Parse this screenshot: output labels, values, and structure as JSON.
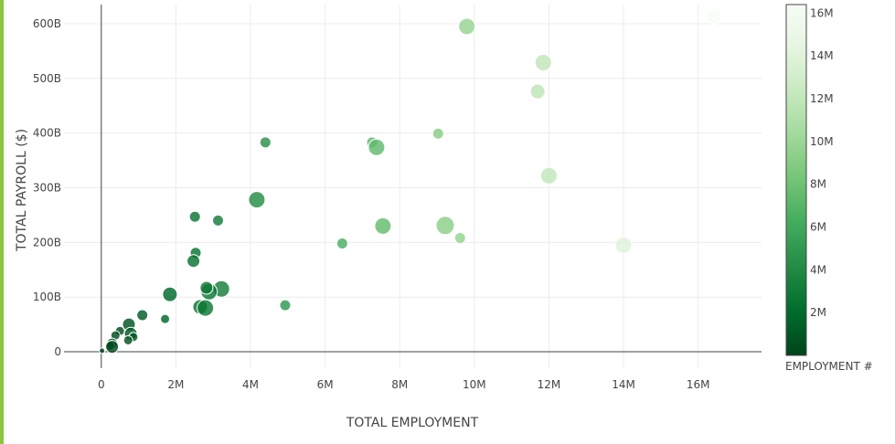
{
  "chart_data": {
    "type": "scatter",
    "xlabel": "TOTAL EMPLOYMENT",
    "ylabel": "TOTAL PAYROLL ($)",
    "xlim": [
      -1000000,
      17700000
    ],
    "ylim": [
      -30000000000,
      635000000000
    ],
    "x_ticks": [
      {
        "value": 0,
        "label": "0"
      },
      {
        "value": 2000000,
        "label": "2M"
      },
      {
        "value": 4000000,
        "label": "4M"
      },
      {
        "value": 6000000,
        "label": "6M"
      },
      {
        "value": 8000000,
        "label": "8M"
      },
      {
        "value": 10000000,
        "label": "10M"
      },
      {
        "value": 12000000,
        "label": "12M"
      },
      {
        "value": 14000000,
        "label": "14M"
      },
      {
        "value": 16000000,
        "label": "16M"
      }
    ],
    "y_ticks": [
      {
        "value": 0,
        "label": "0"
      },
      {
        "value": 100000000000,
        "label": "100B"
      },
      {
        "value": 200000000000,
        "label": "200B"
      },
      {
        "value": 300000000000,
        "label": "300B"
      },
      {
        "value": 400000000000,
        "label": "400B"
      },
      {
        "value": 500000000000,
        "label": "500B"
      },
      {
        "value": 600000000000,
        "label": "600B"
      }
    ],
    "grid": true,
    "colorbar": {
      "title": "EMPLOYMENT #",
      "min": 0,
      "max": 16400000,
      "ticks": [
        {
          "value": 2000000,
          "label": "2M"
        },
        {
          "value": 4000000,
          "label": "4M"
        },
        {
          "value": 6000000,
          "label": "6M"
        },
        {
          "value": 8000000,
          "label": "8M"
        },
        {
          "value": 10000000,
          "label": "10M"
        },
        {
          "value": 12000000,
          "label": "12M"
        },
        {
          "value": 14000000,
          "label": "14M"
        },
        {
          "value": 16000000,
          "label": "16M"
        }
      ],
      "colors": [
        "#00441b",
        "#006d2c",
        "#238b45",
        "#41ab5d",
        "#74c476",
        "#a1d99b",
        "#c7e9c0",
        "#e5f5e0",
        "#f7fcf5"
      ]
    },
    "points": [
      {
        "x": 16430000,
        "y": 613000000000,
        "size": 8
      },
      {
        "x": 9800000,
        "y": 595000000000,
        "size": 9
      },
      {
        "x": 11850000,
        "y": 529000000000,
        "size": 9
      },
      {
        "x": 11700000,
        "y": 476000000000,
        "size": 8
      },
      {
        "x": 9030000,
        "y": 399000000000,
        "size": 6
      },
      {
        "x": 7260000,
        "y": 383000000000,
        "size": 6
      },
      {
        "x": 7380000,
        "y": 374000000000,
        "size": 9
      },
      {
        "x": 4400000,
        "y": 383000000000,
        "size": 6
      },
      {
        "x": 12000000,
        "y": 322000000000,
        "size": 9
      },
      {
        "x": 4170000,
        "y": 278000000000,
        "size": 9
      },
      {
        "x": 2510000,
        "y": 247000000000,
        "size": 6
      },
      {
        "x": 3130000,
        "y": 240000000000,
        "size": 6
      },
      {
        "x": 9220000,
        "y": 231000000000,
        "size": 10
      },
      {
        "x": 7550000,
        "y": 230000000000,
        "size": 9
      },
      {
        "x": 9620000,
        "y": 208000000000,
        "size": 6
      },
      {
        "x": 6460000,
        "y": 198000000000,
        "size": 6
      },
      {
        "x": 14000000,
        "y": 195000000000,
        "size": 9
      },
      {
        "x": 2530000,
        "y": 181000000000,
        "size": 6
      },
      {
        "x": 2470000,
        "y": 166000000000,
        "size": 7
      },
      {
        "x": 3220000,
        "y": 115000000000,
        "size": 9
      },
      {
        "x": 2890000,
        "y": 110000000000,
        "size": 9
      },
      {
        "x": 2820000,
        "y": 117000000000,
        "size": 7
      },
      {
        "x": 1840000,
        "y": 105000000000,
        "size": 8
      },
      {
        "x": 4930000,
        "y": 85000000000,
        "size": 6
      },
      {
        "x": 2650000,
        "y": 82000000000,
        "size": 8
      },
      {
        "x": 2790000,
        "y": 80000000000,
        "size": 9
      },
      {
        "x": 1100000,
        "y": 67000000000,
        "size": 6
      },
      {
        "x": 1710000,
        "y": 60000000000,
        "size": 5
      },
      {
        "x": 740000,
        "y": 50000000000,
        "size": 7
      },
      {
        "x": 500000,
        "y": 38000000000,
        "size": 5
      },
      {
        "x": 790000,
        "y": 33000000000,
        "size": 7
      },
      {
        "x": 380000,
        "y": 30000000000,
        "size": 5
      },
      {
        "x": 860000,
        "y": 27000000000,
        "size": 5
      },
      {
        "x": 720000,
        "y": 21000000000,
        "size": 5
      },
      {
        "x": 290000,
        "y": 15000000000,
        "size": 6
      },
      {
        "x": 230000,
        "y": 11000000000,
        "size": 5
      },
      {
        "x": 290000,
        "y": 9000000000,
        "size": 7
      },
      {
        "x": 20000,
        "y": 2000000000,
        "size": 3
      }
    ]
  }
}
